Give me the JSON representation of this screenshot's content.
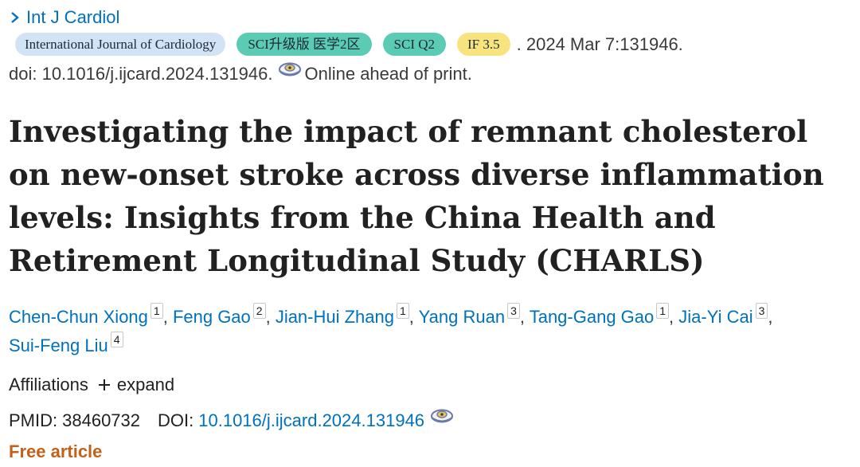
{
  "journal_link": "Int J Cardiol",
  "badges": {
    "journal": "International Journal of Cardiology",
    "sci_upgrade": "SCI升级版 医学2区",
    "sci_quartile": "SCI Q2",
    "impact_factor": "IF 3.5"
  },
  "pub_date": ". 2024 Mar 7:131946.",
  "doi_line": {
    "doi": "doi: 10.1016/j.ijcard.2024.131946.",
    "status": "Online ahead of print."
  },
  "title": "Investigating the impact of remnant cholesterol on new-onset stroke across diverse inflammation levels: Insights from the China Health and Retirement Longitudinal Study (CHARLS)",
  "authors": [
    {
      "name": "Chen-Chun Xiong",
      "aff": "1"
    },
    {
      "name": "Feng Gao",
      "aff": "2"
    },
    {
      "name": "Jian-Hui Zhang",
      "aff": "1"
    },
    {
      "name": "Yang Ruan",
      "aff": "3"
    },
    {
      "name": "Tang-Gang Gao",
      "aff": "1"
    },
    {
      "name": "Jia-Yi Cai",
      "aff": "3"
    },
    {
      "name": "Sui-Feng Liu",
      "aff": "4"
    }
  ],
  "affiliations": {
    "label": "Affiliations",
    "expand": "expand"
  },
  "ids": {
    "pmid_label": "PMID:",
    "pmid": "38460732",
    "doi_label": "DOI:",
    "doi": "10.1016/j.ijcard.2024.131946"
  },
  "free_article": "Free article",
  "colors": {
    "link": "#0071bc",
    "teal_badge": "#5bcbb4",
    "journal_badge": "#d3e3f6",
    "if_badge": "#f8e47e",
    "free": "#c2621a"
  }
}
